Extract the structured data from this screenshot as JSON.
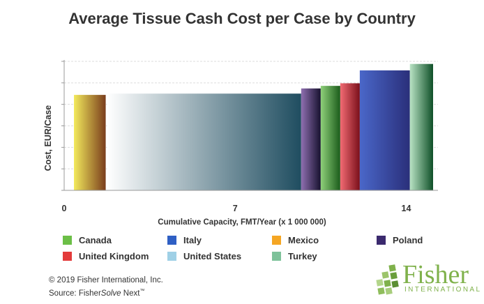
{
  "title": "Average Tissue Cash Cost per Case by Country",
  "chart_data": {
    "type": "bar",
    "subtype": "variable-width cost curve",
    "xlabel": "Cumulative Capacity, FMT/Year (x 1 000 000)",
    "ylabel": "Cost, EUR/Case",
    "x_ticks": [
      "0",
      "7",
      "14"
    ],
    "xlim": [
      0,
      15.3
    ],
    "y_ticks_labeled": false,
    "y_gridlines": 6,
    "grid": true,
    "legend_placement": "bottom",
    "y_scale_note": "relative (no y tick labels shown)",
    "ylim": [
      0,
      100
    ],
    "series": [
      {
        "name": "Mexico",
        "x_start": 0.4,
        "x_end": 1.7,
        "value": 74,
        "color_top": "#f3ea5c",
        "color_bottom": "#7a3d1c"
      },
      {
        "name": "United States",
        "x_start": 1.75,
        "x_end": 9.7,
        "value": 75,
        "color_top": "#ffffff",
        "color_bottom": "#1f4d60"
      },
      {
        "name": "Poland",
        "x_start": 9.7,
        "x_end": 10.5,
        "value": 79,
        "color_top": "#8f6fb0",
        "color_bottom": "#17122f"
      },
      {
        "name": "Canada",
        "x_start": 10.5,
        "x_end": 11.3,
        "value": 81,
        "color_top": "#8fd07a",
        "color_bottom": "#1b5c1b"
      },
      {
        "name": "United Kingdom",
        "x_start": 11.3,
        "x_end": 12.1,
        "value": 83,
        "color_top": "#f26b73",
        "color_bottom": "#7a0f1a"
      },
      {
        "name": "Italy",
        "x_start": 12.1,
        "x_end": 14.15,
        "value": 93,
        "color_top": "#4a67c9",
        "color_bottom": "#2a2f7a"
      },
      {
        "name": "Turkey",
        "x_start": 14.15,
        "x_end": 15.1,
        "value": 98,
        "color_top": "#b9e3c4",
        "color_bottom": "#0f5028"
      }
    ]
  },
  "legend": [
    {
      "label": "Canada",
      "color": "#6cbf47"
    },
    {
      "label": "Italy",
      "color": "#2f5fc4"
    },
    {
      "label": "Mexico",
      "color": "#f5a623"
    },
    {
      "label": "Poland",
      "color": "#3b2a6e"
    },
    {
      "label": "United Kingdom",
      "color": "#e33b3b"
    },
    {
      "label": "United States",
      "color": "#9fd0e6"
    },
    {
      "label": "Turkey",
      "color": "#7ec29a"
    }
  ],
  "footer": {
    "copyright": "© 2019 Fisher International, Inc.",
    "source_prefix": "Source: Fisher",
    "source_italic": "Solve",
    "source_suffix": " Next",
    "source_tm": "™"
  },
  "logo": {
    "word": "Fisher",
    "sub": "INTERNATIONAL",
    "color": "#7fb14b"
  }
}
